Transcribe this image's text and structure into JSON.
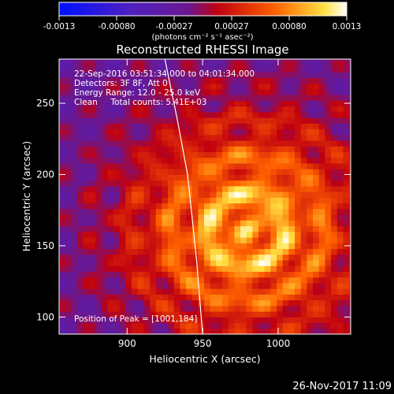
{
  "chart_data": {
    "type": "heatmap",
    "title": "Reconstructed RHESSI Image",
    "xlabel": "Heliocentric X (arcsec)",
    "ylabel": "Heliocentric Y (arcsec)",
    "xlim": [
      855,
      1048
    ],
    "ylim": [
      88,
      281
    ],
    "x_ticks": [
      "900",
      "950",
      "1000"
    ],
    "y_ticks": [
      "100",
      "150",
      "200",
      "250"
    ],
    "colorbar": {
      "ticks": [
        "-0.0013",
        "-0.00080",
        "-0.00027",
        "0.00027",
        "0.00080",
        "0.0013"
      ],
      "units": "(photons cm⁻² s⁻¹ asec⁻²)",
      "range": [
        -0.0013,
        0.0013
      ],
      "colormap": "blue-purple-red-yellow-white"
    },
    "annotations": {
      "time": "22-Sep-2016 03:51:34.000 to 04:01:34.000",
      "detectors": "Detectors: 3F 8F, Att 0",
      "energy": "Energy Range: 12.0 - 25.0 keV",
      "clean": "Clean     Total counts: 5.41E+03",
      "peak": "Position of Peak = [1001,184]"
    },
    "peak_position": [
      1001,
      184
    ],
    "limb_curve": {
      "x": [
        925,
        933,
        940,
        946,
        950
      ],
      "y": [
        281,
        240,
        200,
        140,
        88
      ]
    }
  },
  "timestamp": "26-Nov-2017 11:09"
}
